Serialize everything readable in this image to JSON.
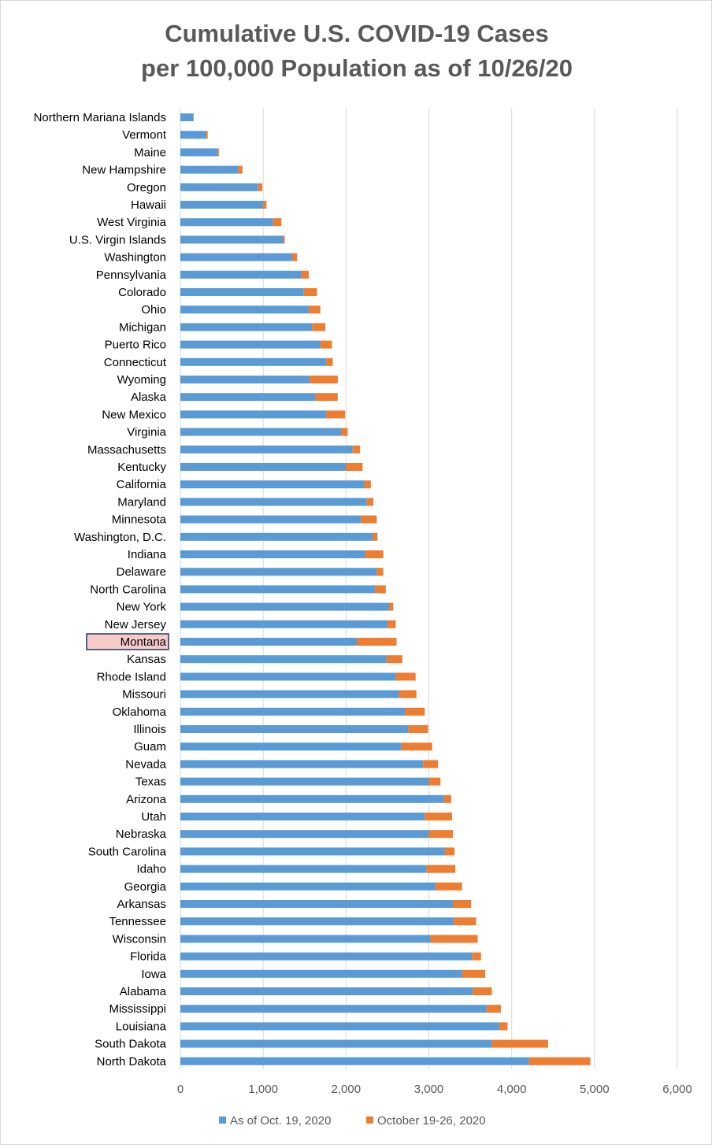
{
  "chart_data": {
    "type": "bar",
    "orientation": "horizontal",
    "stacked": true,
    "title": "Cumulative U.S. COVID-19 Cases per 100,000 Population as of 10/26/20",
    "title_lines": [
      "Cumulative U.S. COVID-19 Cases",
      "per 100,000 Population as of 10/26/20"
    ],
    "xlim": [
      0,
      6000
    ],
    "x_ticks": [
      0,
      1000,
      2000,
      3000,
      4000,
      5000,
      6000
    ],
    "x_tick_labels": [
      "0",
      "1,000",
      "2,000",
      "3,000",
      "4,000",
      "5,000",
      "6,000"
    ],
    "grid": "vertical",
    "legend_position": "bottom",
    "highlighted_category": "Montana",
    "colors": {
      "as_of_oct19": "#5b9bd5",
      "oct19_26": "#ed7d31",
      "highlight_fill": "#f8cbcb",
      "highlight_border": "#1f3864",
      "grid": "#d9d9d9",
      "title": "#595959"
    },
    "categories": [
      "Northern Mariana Islands",
      "Vermont",
      "Maine",
      "New Hampshire",
      "Oregon",
      "Hawaii",
      "West Virginia",
      "U.S. Virgin Islands",
      "Washington",
      "Pennsylvania",
      "Colorado",
      "Ohio",
      "Michigan",
      "Puerto Rico",
      "Connecticut",
      "Wyoming",
      "Alaska",
      "New Mexico",
      "Virginia",
      "Massachusetts",
      "Kentucky",
      "California",
      "Maryland",
      "Minnesota",
      "Washington, D.C.",
      "Indiana",
      "Delaware",
      "North Carolina",
      "New York",
      "New Jersey",
      "Montana",
      "Kansas",
      "Rhode Island",
      "Missouri",
      "Oklahoma",
      "Illinois",
      "Guam",
      "Nevada",
      "Texas",
      "Arizona",
      "Utah",
      "Nebraska",
      "South Carolina",
      "Idaho",
      "Georgia",
      "Arkansas",
      "Tennessee",
      "Wisconsin",
      "Florida",
      "Iowa",
      "Alabama",
      "Mississippi",
      "Louisiana",
      "South Dakota",
      "North Dakota"
    ],
    "series": [
      {
        "name": "As of Oct. 19, 2020",
        "values": [
          160,
          310,
          450,
          700,
          940,
          1000,
          1120,
          1240,
          1350,
          1460,
          1490,
          1550,
          1590,
          1690,
          1760,
          1560,
          1630,
          1760,
          1940,
          2080,
          2000,
          2220,
          2250,
          2180,
          2320,
          2230,
          2370,
          2350,
          2520,
          2500,
          2130,
          2490,
          2600,
          2640,
          2710,
          2750,
          2670,
          2930,
          3000,
          3180,
          2950,
          3000,
          3190,
          2970,
          3080,
          3290,
          3300,
          3020,
          3520,
          3400,
          3530,
          3700,
          3850,
          3760,
          4210
        ]
      },
      {
        "name": "October 19-26, 2020",
        "values": [
          0,
          20,
          15,
          50,
          50,
          40,
          100,
          20,
          60,
          90,
          160,
          140,
          160,
          140,
          80,
          340,
          270,
          230,
          80,
          90,
          200,
          80,
          80,
          190,
          60,
          220,
          80,
          130,
          50,
          100,
          480,
          190,
          240,
          210,
          240,
          240,
          370,
          180,
          140,
          90,
          330,
          290,
          120,
          350,
          320,
          220,
          270,
          570,
          110,
          280,
          230,
          170,
          100,
          680,
          740
        ]
      }
    ]
  }
}
